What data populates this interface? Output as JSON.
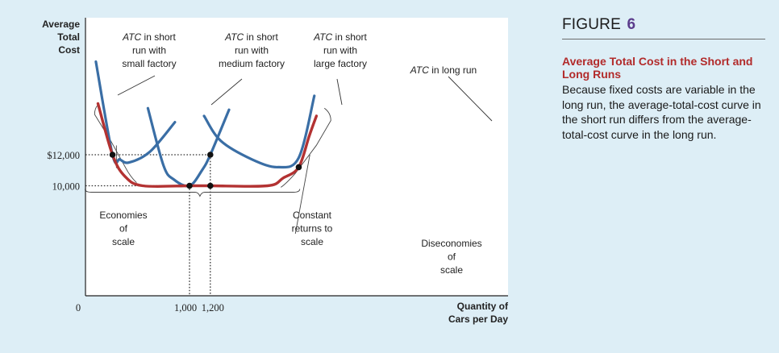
{
  "figure": {
    "word": "FIGURE",
    "number": "6",
    "title": "Average Total Cost in the Short and Long Runs",
    "caption": "Because fixed costs are variable in the long run, the average-total-cost curve in the short run differs from the average-total-cost curve in the long run."
  },
  "chart_data": {
    "type": "line",
    "y_axis_label": [
      "Average",
      "Total",
      "Cost"
    ],
    "x_axis_label": [
      "Quantity of",
      "Cars per Day"
    ],
    "origin_label": "0",
    "y_ticks": [
      {
        "value": 12000,
        "label": "$12,000"
      },
      {
        "value": 10000,
        "label": "10,000"
      }
    ],
    "x_ticks": [
      {
        "value": 1000,
        "label": "1,000"
      },
      {
        "value": 1200,
        "label": "1,200"
      }
    ],
    "ylim": [
      0,
      20000
    ],
    "series": [
      {
        "name": "ATC in short run with small factory",
        "kind": "short-run",
        "color": "#3a6ea5",
        "points": [
          [
            100,
            18000
          ],
          [
            260,
            12000
          ],
          [
            330,
            11700
          ],
          [
            420,
            11500
          ],
          [
            620,
            12200
          ],
          [
            860,
            14100
          ]
        ]
      },
      {
        "name": "ATC in short run with medium factory",
        "kind": "short-run",
        "color": "#3a6ea5",
        "points": [
          [
            600,
            15000
          ],
          [
            750,
            11300
          ],
          [
            850,
            10400
          ],
          [
            1000,
            10000
          ],
          [
            1120,
            11000
          ],
          [
            1200,
            12000
          ],
          [
            1380,
            14900
          ]
        ]
      },
      {
        "name": "ATC in short run with large factory",
        "kind": "short-run",
        "color": "#3a6ea5",
        "points": [
          [
            1140,
            14500
          ],
          [
            1300,
            12900
          ],
          [
            1600,
            11700
          ],
          [
            1850,
            11200
          ],
          [
            2050,
            11800
          ],
          [
            2200,
            15800
          ]
        ]
      },
      {
        "name": "ATC in long run",
        "kind": "long-run",
        "color": "#b33232",
        "points": [
          [
            120,
            15300
          ],
          [
            260,
            12000
          ],
          [
            380,
            10600
          ],
          [
            550,
            10000
          ],
          [
            1000,
            10000
          ],
          [
            1200,
            10000
          ],
          [
            1750,
            10000
          ],
          [
            1900,
            10500
          ],
          [
            2050,
            11200
          ],
          [
            2150,
            13200
          ],
          [
            2220,
            14500
          ]
        ]
      }
    ],
    "points_marked": [
      [
        260,
        12000
      ],
      [
        1000,
        10000
      ],
      [
        1200,
        12000
      ],
      [
        1200,
        10000
      ],
      [
        2050,
        11200
      ]
    ],
    "curve_labels": [
      {
        "lines": [
          "ATC in short",
          "run with",
          "small factory"
        ]
      },
      {
        "lines": [
          "ATC in short",
          "run with",
          "medium factory"
        ]
      },
      {
        "lines": [
          "ATC in short",
          "run with",
          "large factory"
        ]
      },
      {
        "lines": [
          "ATC in long run"
        ]
      }
    ],
    "region_labels": [
      {
        "lines": [
          "Economies",
          "of",
          "scale"
        ]
      },
      {
        "lines": [
          "Constant",
          "returns to",
          "scale"
        ]
      },
      {
        "lines": [
          "Diseconomies",
          "of",
          "scale"
        ]
      }
    ],
    "colors": {
      "short_run": "#3a6ea5",
      "long_run": "#b33232",
      "background": "#ddeef6",
      "plot_bg": "#ffffff"
    }
  }
}
